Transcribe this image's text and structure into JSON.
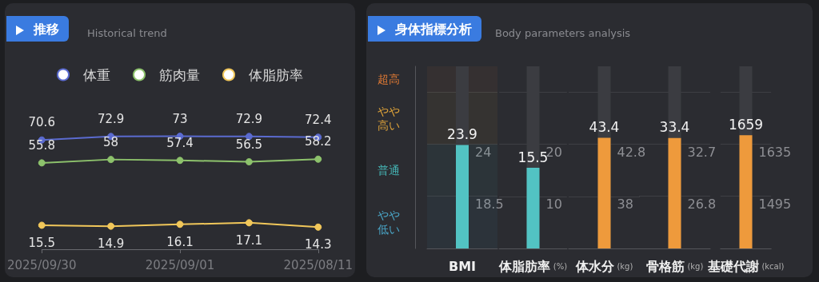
{
  "chart_data": [
    {
      "type": "line",
      "title": "推移",
      "subtitle": "Historical trend",
      "categories": [
        "2025/09/30",
        null,
        "2025/09/01",
        null,
        "2025/08/11"
      ],
      "series": [
        {
          "name": "体重",
          "color": "#5b6bd0",
          "values": [
            70.6,
            72.9,
            73,
            72.9,
            72.4
          ]
        },
        {
          "name": "筋肉量",
          "color": "#8dc26c",
          "values": [
            55.8,
            58,
            57.4,
            56.5,
            58.2
          ]
        },
        {
          "name": "体脂肪率",
          "color": "#f1c75a",
          "values": [
            15.5,
            14.9,
            16.1,
            17.1,
            14.3
          ]
        }
      ],
      "data_labels": true,
      "marker": "circle",
      "legend": "top",
      "grid": false
    },
    {
      "type": "bar",
      "title": "身体指標分析",
      "categories": [
        "BMI"
      ],
      "values": [
        23.9
      ],
      "color": "#52c3c3",
      "data_labels": true,
      "ylim": [
        13,
        32.2
      ],
      "yticks": [
        18.5,
        24,
        {
          "value": 29.5,
          "label": null
        }
      ],
      "grid": "y",
      "bands": [
        {
          "axis": "y",
          "from": 13,
          "to": 18.5,
          "label": "やや低い",
          "color": "#4aa6c8"
        },
        {
          "axis": "y",
          "from": 18.5,
          "to": 24,
          "label": "普通",
          "color": "#45b3b3"
        },
        {
          "axis": "y",
          "from": 24,
          "to": 29.5,
          "label": "やや高い",
          "color": "#e0a43a"
        },
        {
          "axis": "y",
          "from": 29.5,
          "to": 32.2,
          "label": "超高",
          "color": "#e07a34"
        }
      ]
    },
    {
      "type": "bar",
      "subtitle": "Body parameters analysis",
      "categories": [
        "体脂肪率 (%)"
      ],
      "values": [
        15.5
      ],
      "color": "#52c3c3",
      "data_labels": true,
      "ylim": [
        0,
        35
      ],
      "yticks": [
        10,
        20,
        {
          "value": 30,
          "label": null
        }
      ],
      "grid": "y"
    },
    {
      "type": "bar",
      "categories": [
        "体水分 (kg)"
      ],
      "values": [
        43.4
      ],
      "color": "#ee9a3c",
      "data_labels": true,
      "ylim": [
        33.2,
        50
      ],
      "yticks": [
        38,
        42.8,
        {
          "value": 47.6,
          "label": null
        }
      ],
      "grid": "y"
    },
    {
      "type": "bar",
      "categories": [
        "骨格筋 (kg)"
      ],
      "values": [
        33.4
      ],
      "color": "#ee9a3c",
      "data_labels": true,
      "ylim": [
        20.9,
        41.5
      ],
      "yticks": [
        26.8,
        32.7,
        {
          "value": 38.6,
          "label": null
        }
      ],
      "grid": "y"
    },
    {
      "type": "bar",
      "categories": [
        "基礎代謝 (kcal)"
      ],
      "values": [
        1659
      ],
      "color": "#ee9a3c",
      "data_labels": true,
      "ylim": [
        1355,
        1844
      ],
      "yticks": [
        1495,
        1635,
        {
          "value": 1775,
          "label": null
        }
      ],
      "grid": "y"
    }
  ]
}
